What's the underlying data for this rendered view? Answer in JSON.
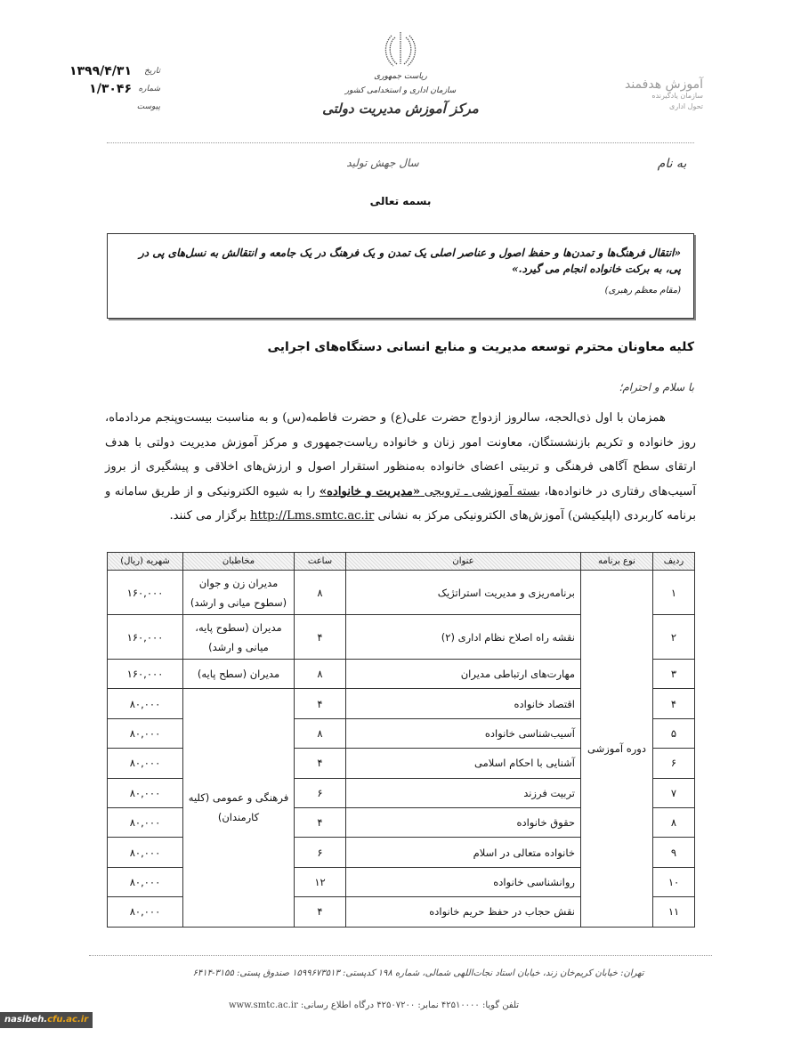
{
  "header": {
    "org_lines": [
      "ریاست جمهوری",
      "سازمان اداری و استخدامی کشور",
      "مرکز آموزش مدیریت دولتی"
    ],
    "date_label": "تاریخ",
    "date_value": "۱۳۹۹/۴/۳۱",
    "number_label": "شماره",
    "number_value": "۱/۳۰۴۶",
    "attachment_label": "پیوست",
    "brand_title": "آموزش هدفمند",
    "brand_sub_1": "سازمان یادگیرنده",
    "brand_sub_2": "تحول اداری",
    "year_slogan": "سال جهش تولید",
    "bename": "به نام",
    "bismillah": "بسمه تعالی"
  },
  "quote": {
    "text": "«انتقال فرهنگ‌ها و تمدن‌ها و حفظ اصول و عناصر اصلی یک تمدن و یک فرهنگ در یک جامعه و انتقالش به نسل‌های پی در پی، به برکت خانواده انجام می گیرد.»",
    "source": "(مقام معظم رهبری)"
  },
  "letter": {
    "recipient": "کلیه معاونان محترم توسعه مدیریت و منابع انسانی دستگاه‌های اجرایی",
    "greeting": "با سلام و احترام؛",
    "body_part1": "همزمان با اول ذی‌الحجه، سالروز ازدواج حضرت علی(ع) و حضرت فاطمه(س) و به مناسبت بیست‌وپنجم مردادماه، روز خانواده و تکریم بازنشستگان، معاونت امور زنان و خانواده ریاست‌جمهوری و مرکز آموزش مدیریت دولتی با هدف ارتقای سطح آگاهی فرهنگی و تربیتی اعضای خانواده به‌منظور استقرار اصول و ارزش‌های اخلاقی و پیشگیری از بروز آسیب‌های رفتاری در خانواده‌ها، ",
    "body_underlined_prefix": "بسته آموزشی ـ ترویجی ",
    "body_bold": "«مدیریت و خانواده»",
    "body_part2": " را به شیوه الکترونیکی و از طریق سامانه و برنامه کاربردی (اپلیکیشن) آموزش‌های الکترونیکی مرکز به نشانی ",
    "link": "http://Lms.smtc.ac.ir",
    "body_part3": " برگزار می کنند."
  },
  "table": {
    "headers": [
      "ردیف",
      "نوع برنامه",
      "عنوان",
      "ساعت",
      "مخاطبان",
      "شهریه (ریال)"
    ],
    "program_type": "دوره آموزشی",
    "shared_audience": "فرهنگی و عمومی (کلیه کارمندان)",
    "rows": [
      {
        "no": "۱",
        "title": "برنامه‌ریزی و مدیریت استراتژیک",
        "hours": "۸",
        "audience": "مدیران زن و جوان (سطوح میانی و ارشد)",
        "fee": "۱۶۰,۰۰۰"
      },
      {
        "no": "۲",
        "title": "نقشه راه اصلاح نظام اداری (۲)",
        "hours": "۴",
        "audience": "مدیران (سطوح پایه، میانی و ارشد)",
        "fee": "۱۶۰,۰۰۰"
      },
      {
        "no": "۳",
        "title": "مهارت‌های ارتباطی مدیران",
        "hours": "۸",
        "audience": "مدیران (سطح پایه)",
        "fee": "۱۶۰,۰۰۰"
      },
      {
        "no": "۴",
        "title": "اقتصاد خانواده",
        "hours": "۴",
        "fee": "۸۰,۰۰۰"
      },
      {
        "no": "۵",
        "title": "آسیب‌شناسی خانواده",
        "hours": "۸",
        "fee": "۸۰,۰۰۰"
      },
      {
        "no": "۶",
        "title": "آشنایی با احکام اسلامی",
        "hours": "۴",
        "fee": "۸۰,۰۰۰"
      },
      {
        "no": "۷",
        "title": "تربیت فرزند",
        "hours": "۶",
        "fee": "۸۰,۰۰۰"
      },
      {
        "no": "۸",
        "title": "حقوق خانواده",
        "hours": "۴",
        "fee": "۸۰,۰۰۰"
      },
      {
        "no": "۹",
        "title": "خانواده متعالی در اسلام",
        "hours": "۶",
        "fee": "۸۰,۰۰۰"
      },
      {
        "no": "۱۰",
        "title": "روانشناسی خانواده",
        "hours": "۱۲",
        "fee": "۸۰,۰۰۰"
      },
      {
        "no": "۱۱",
        "title": "نقش حجاب در حفظ حریم خانواده",
        "hours": "۴",
        "fee": "۸۰,۰۰۰"
      }
    ]
  },
  "footer": {
    "address": "تهران: خیابان کریم‌خان زند، خیابان استاد نجات‌اللهی شمالی، شماره ۱۹۸  کدپستی: ۱۵۹۹۶۷۳۵۱۳  صندوق پستی: ۳۱۵۵-۶۴۱۴",
    "contact": "تلفن گویا: ۴۲۵۱۰۰۰۰  نمابر: ۴۲۵۰۷۲۰۰  درگاه اطلاع رسانی: www.smtc.ac.ir"
  },
  "watermark": {
    "part1": "nasibeh.",
    "part2": "cfu.ac.ir"
  }
}
